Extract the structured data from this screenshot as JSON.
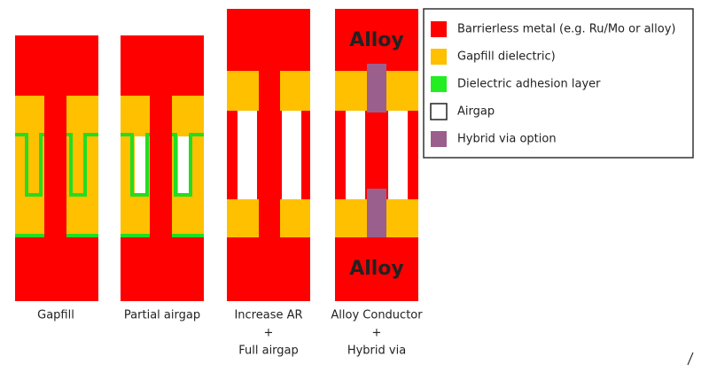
{
  "legend": {
    "items": [
      {
        "label": "Barrierless metal (e.g. Ru/Mo or alloy)"
      },
      {
        "label": "Gapfill dielectric)"
      },
      {
        "label": "Dielectric adhesion layer"
      },
      {
        "label": "Airgap"
      },
      {
        "label": "Hybrid via option"
      }
    ]
  },
  "structures": [
    {
      "caption": [
        "Gapfill"
      ]
    },
    {
      "caption": [
        "Partial airgap"
      ]
    },
    {
      "caption": [
        "Increase AR",
        "+",
        "Full airgap"
      ]
    },
    {
      "caption": [
        "Alloy Conductor",
        "+",
        "Hybrid via"
      ],
      "labels": [
        "Alloy",
        "Alloy"
      ]
    }
  ]
}
